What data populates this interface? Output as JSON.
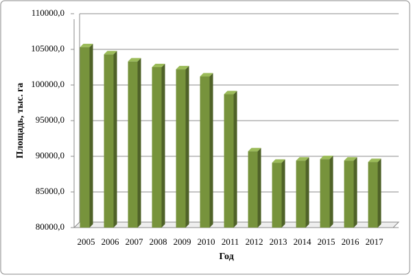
{
  "chart_data": {
    "type": "bar",
    "y_label": "Площадь, тыс. га",
    "x_label": "Год",
    "categories": [
      "2005",
      "2006",
      "2007",
      "2008",
      "2009",
      "2010",
      "2011",
      "2012",
      "2013",
      "2014",
      "2015",
      "2016",
      "2017"
    ],
    "values": [
      105300,
      104300,
      103300,
      102500,
      102200,
      101200,
      98700,
      90700,
      89100,
      89400,
      89600,
      89400,
      89200
    ],
    "color": "#77933c",
    "ylim": [
      80000,
      110000
    ],
    "yticks": [
      {
        "value": 80000,
        "label": "80000,0"
      },
      {
        "value": 85000,
        "label": "85000,0"
      },
      {
        "value": 90000,
        "label": "90000,0"
      },
      {
        "value": 95000,
        "label": "95000,0"
      },
      {
        "value": 100000,
        "label": "100000,0"
      },
      {
        "value": 105000,
        "label": "105000,0"
      },
      {
        "value": 110000,
        "label": "110000,0"
      }
    ],
    "grid": true
  }
}
